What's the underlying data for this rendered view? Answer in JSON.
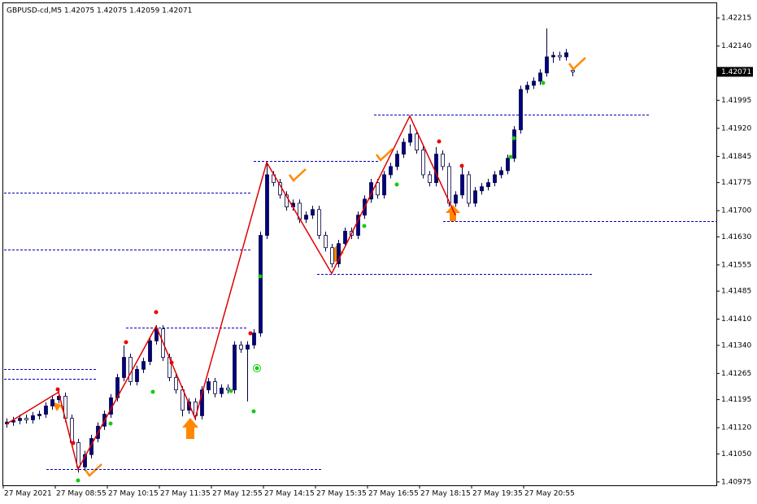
{
  "chart_data": {
    "type": "candlestick",
    "title": "GBPUSD-cd,M5  1.42075 1.42075 1.42059 1.42071",
    "x_labels": [
      "27 May 2021",
      "27 May 08:55",
      "27 May 10:15",
      "27 May 11:35",
      "27 May 12:55",
      "27 May 14:15",
      "27 May 15:35",
      "27 May 16:55",
      "27 May 18:15",
      "27 May 19:35",
      "27 May 20:55"
    ],
    "ylim": [
      1.40966,
      1.42263
    ],
    "yticks": [
      1.42215,
      {
        "value": 1.4214,
        "label": "1.42140"
      },
      1.41995,
      {
        "value": 1.4192,
        "label": "1.41920"
      },
      1.41845,
      1.41775,
      {
        "value": 1.417,
        "label": "1.41700"
      },
      {
        "value": 1.4163,
        "label": "1.41630"
      },
      1.41555,
      1.41485,
      {
        "value": 1.4141,
        "label": "1.41410"
      },
      {
        "value": 1.4134,
        "label": "1.41340"
      },
      1.41265,
      1.41195,
      {
        "value": 1.4112,
        "label": "1.41120"
      },
      {
        "value": 1.4105,
        "label": "1.41050"
      },
      1.40975
    ],
    "current_price": 1.42071,
    "bull_color": "#000080",
    "bear_color": "#ffffff",
    "zigzag_color": "#e00000",
    "level_color": "#0000c0",
    "candles": [
      [
        1.4113,
        1.41145,
        1.4112,
        1.41135
      ],
      [
        1.41135,
        1.41149,
        1.41125,
        1.41139
      ],
      [
        1.41139,
        1.41155,
        1.41129,
        1.41145
      ],
      [
        1.41145,
        1.41155,
        1.41131,
        1.41141
      ],
      [
        1.41141,
        1.41162,
        1.41131,
        1.41152
      ],
      [
        1.41152,
        1.41166,
        1.41142,
        1.41156
      ],
      [
        1.41156,
        1.41188,
        1.41146,
        1.41178
      ],
      [
        1.41178,
        1.41205,
        1.41168,
        1.41195
      ],
      [
        1.41195,
        1.41225,
        1.41185,
        1.41204
      ],
      [
        1.41204,
        1.41214,
        1.41135,
        1.41145
      ],
      [
        1.41145,
        1.41155,
        1.4107,
        1.4108
      ],
      [
        1.4108,
        1.4109,
        1.41,
        1.41015
      ],
      [
        1.41015,
        1.41058,
        1.41005,
        1.41048
      ],
      [
        1.41048,
        1.41101,
        1.41038,
        1.41091
      ],
      [
        1.41091,
        1.41134,
        1.41081,
        1.41124
      ],
      [
        1.41124,
        1.41166,
        1.41114,
        1.41156
      ],
      [
        1.41156,
        1.4121,
        1.41146,
        1.412
      ],
      [
        1.412,
        1.41264,
        1.4119,
        1.41254
      ],
      [
        1.41254,
        1.4134,
        1.41244,
        1.41308
      ],
      [
        1.41308,
        1.41318,
        1.41233,
        1.41243
      ],
      [
        1.41243,
        1.41286,
        1.41233,
        1.41276
      ],
      [
        1.41276,
        1.41307,
        1.41266,
        1.41297
      ],
      [
        1.41297,
        1.41362,
        1.41287,
        1.41352
      ],
      [
        1.41352,
        1.41394,
        1.41342,
        1.41384
      ],
      [
        1.41384,
        1.41394,
        1.41298,
        1.41308
      ],
      [
        1.41308,
        1.41318,
        1.41244,
        1.41254
      ],
      [
        1.41254,
        1.41264,
        1.41211,
        1.41221
      ],
      [
        1.41221,
        1.41231,
        1.4115,
        1.41167
      ],
      [
        1.41167,
        1.41199,
        1.41157,
        1.41189
      ],
      [
        1.41189,
        1.41199,
        1.4114,
        1.41152
      ],
      [
        1.41152,
        1.41231,
        1.41142,
        1.41221
      ],
      [
        1.41221,
        1.41253,
        1.41211,
        1.41243
      ],
      [
        1.41243,
        1.41253,
        1.41201,
        1.41211
      ],
      [
        1.41211,
        1.41236,
        1.41201,
        1.41226
      ],
      [
        1.41226,
        1.41236,
        1.41211,
        1.41221
      ],
      [
        1.41221,
        1.41351,
        1.41211,
        1.41341
      ],
      [
        1.41341,
        1.41351,
        1.4132,
        1.4133
      ],
      [
        1.4133,
        1.41351,
        1.4119,
        1.41341
      ],
      [
        1.41341,
        1.41383,
        1.41331,
        1.41373
      ],
      [
        1.41373,
        1.41644,
        1.41363,
        1.41634
      ],
      [
        1.41634,
        1.4183,
        1.41624,
        1.41796
      ],
      [
        1.41796,
        1.41806,
        1.41765,
        1.41775
      ],
      [
        1.41775,
        1.41785,
        1.41732,
        1.41742
      ],
      [
        1.41742,
        1.41752,
        1.417,
        1.4171
      ],
      [
        1.4171,
        1.4173,
        1.417,
        1.4172
      ],
      [
        1.4172,
        1.4173,
        1.41667,
        1.41677
      ],
      [
        1.41677,
        1.41698,
        1.41667,
        1.41688
      ],
      [
        1.41688,
        1.41713,
        1.41678,
        1.41703
      ],
      [
        1.41703,
        1.41713,
        1.41624,
        1.41634
      ],
      [
        1.41634,
        1.41644,
        1.41591,
        1.41601
      ],
      [
        1.41601,
        1.41611,
        1.41548,
        1.41558
      ],
      [
        1.41558,
        1.41622,
        1.41548,
        1.41612
      ],
      [
        1.41612,
        1.41655,
        1.41602,
        1.41645
      ],
      [
        1.41645,
        1.41655,
        1.41624,
        1.41634
      ],
      [
        1.41634,
        1.41698,
        1.41624,
        1.41688
      ],
      [
        1.41688,
        1.41741,
        1.41678,
        1.41731
      ],
      [
        1.41731,
        1.41785,
        1.41721,
        1.41775
      ],
      [
        1.41775,
        1.41785,
        1.41732,
        1.41742
      ],
      [
        1.41742,
        1.41806,
        1.41732,
        1.41796
      ],
      [
        1.41796,
        1.41828,
        1.41786,
        1.41818
      ],
      [
        1.41818,
        1.41861,
        1.41808,
        1.41851
      ],
      [
        1.41851,
        1.41893,
        1.41841,
        1.41883
      ],
      [
        1.41883,
        1.4193,
        1.41873,
        1.41905
      ],
      [
        1.41905,
        1.41915,
        1.41852,
        1.41862
      ],
      [
        1.41862,
        1.41872,
        1.41786,
        1.41796
      ],
      [
        1.41796,
        1.41806,
        1.41765,
        1.41775
      ],
      [
        1.41775,
        1.4187,
        1.41765,
        1.41851
      ],
      [
        1.41851,
        1.41861,
        1.41808,
        1.41818
      ],
      [
        1.41818,
        1.41828,
        1.4171,
        1.4172
      ],
      [
        1.4172,
        1.41752,
        1.4171,
        1.41742
      ],
      [
        1.41742,
        1.4182,
        1.41732,
        1.41796
      ],
      [
        1.41796,
        1.41806,
        1.4171,
        1.4172
      ],
      [
        1.4172,
        1.41763,
        1.4171,
        1.41753
      ],
      [
        1.41753,
        1.41774,
        1.41743,
        1.41764
      ],
      [
        1.41764,
        1.41785,
        1.41754,
        1.41775
      ],
      [
        1.41775,
        1.41806,
        1.41765,
        1.41796
      ],
      [
        1.41796,
        1.41817,
        1.41786,
        1.41807
      ],
      [
        1.41807,
        1.4185,
        1.41797,
        1.4184
      ],
      [
        1.4184,
        1.41926,
        1.4183,
        1.41916
      ],
      [
        1.41916,
        1.42034,
        1.41906,
        1.42024
      ],
      [
        1.42024,
        1.42045,
        1.42014,
        1.42035
      ],
      [
        1.42035,
        1.42056,
        1.42025,
        1.42046
      ],
      [
        1.42046,
        1.42078,
        1.42036,
        1.42068
      ],
      [
        1.42068,
        1.42187,
        1.42058,
        1.42111
      ],
      [
        1.42111,
        1.42125,
        1.42095,
        1.42115
      ],
      [
        1.42115,
        1.42125,
        1.42101,
        1.42111
      ],
      [
        1.42111,
        1.42132,
        1.42101,
        1.42122
      ],
      [
        1.42075,
        1.42075,
        1.42059,
        1.42071
      ]
    ],
    "zigzag": {
      "bars": [
        0,
        8,
        11,
        23,
        29,
        40,
        50,
        62,
        69
      ],
      "prices": [
        1.4113,
        1.41215,
        1.41009,
        1.41391,
        1.41145,
        1.41829,
        1.41532,
        1.41953,
        1.41688
      ]
    },
    "levels": [
      1.41749,
      1.41595,
      1.41276,
      1.4125,
      1.41388,
      1.41833,
      1.41957,
      1.41671,
      1.4153,
      1.41009
    ]
  }
}
